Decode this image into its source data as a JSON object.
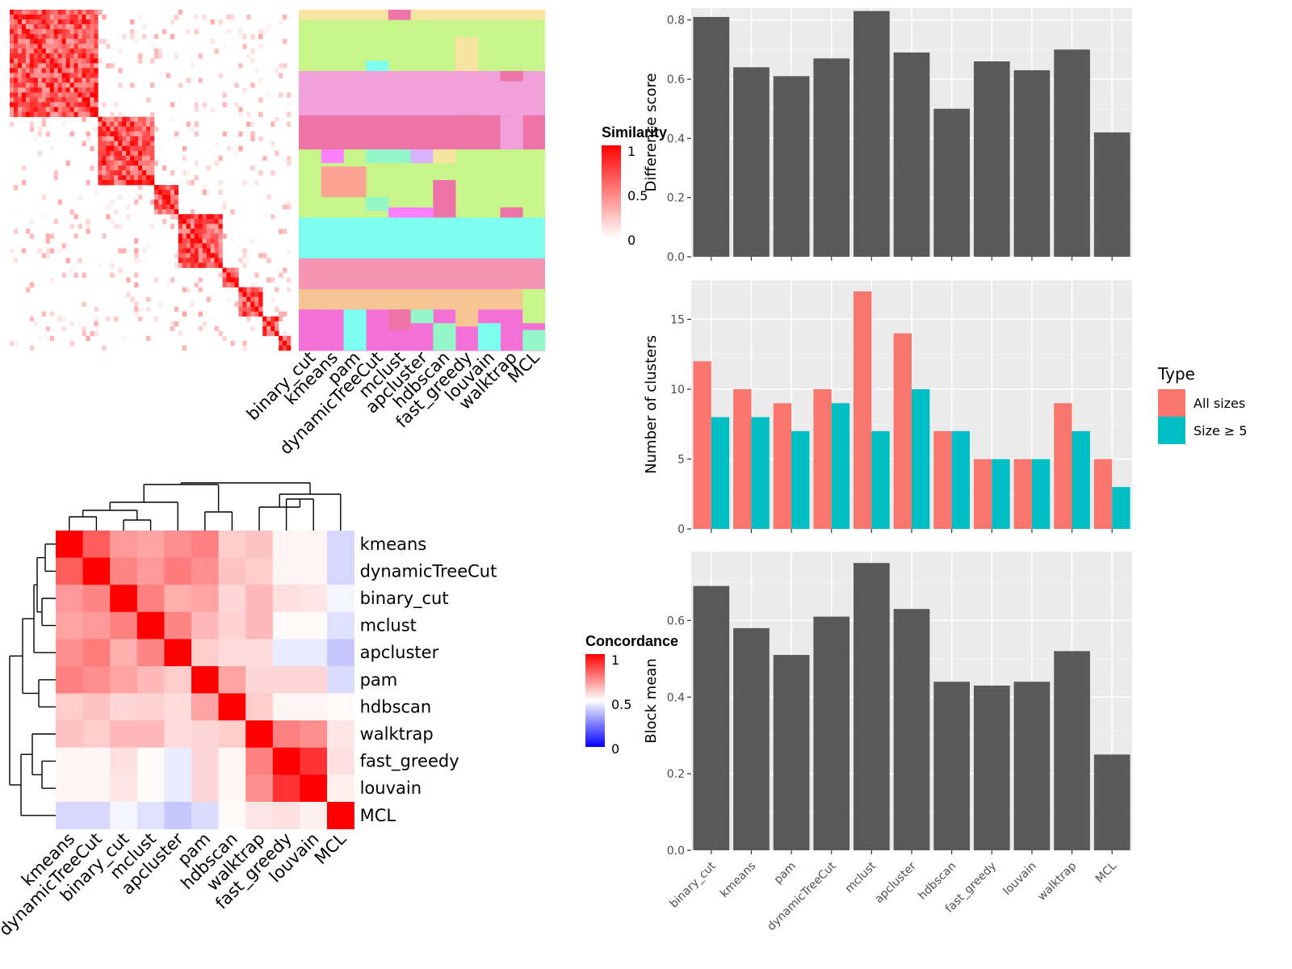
{
  "similarity_legend": {
    "title": "Similarity",
    "ticks": [
      "1",
      "0.5",
      "0"
    ]
  },
  "concordance_legend": {
    "title": "Concordance",
    "ticks": [
      "1",
      "0.5",
      "0"
    ]
  },
  "chart_data": [
    {
      "type": "heatmap",
      "name": "similarity_and_partitions",
      "method_labels": [
        "binary_cut",
        "kmeans",
        "pam",
        "dynamicTreeCut",
        "mclust",
        "apcluster",
        "hdbscan",
        "fast_greedy",
        "louvain",
        "walktrap",
        "MCL"
      ],
      "colorscale": {
        "low": "#FFFFFF",
        "high": "#FF0000",
        "range": [
          0,
          1
        ]
      }
    },
    {
      "type": "heatmap",
      "name": "concordance",
      "rows": [
        "kmeans",
        "dynamicTreeCut",
        "binary_cut",
        "mclust",
        "apcluster",
        "pam",
        "hdbscan",
        "walktrap",
        "fast_greedy",
        "louvain",
        "MCL"
      ],
      "cols": [
        "kmeans",
        "dynamicTreeCut",
        "binary_cut",
        "mclust",
        "apcluster",
        "pam",
        "hdbscan",
        "walktrap",
        "fast_greedy",
        "louvain",
        "MCL"
      ],
      "colorscale": {
        "low": "#0000FF",
        "mid": "#FFFFFF",
        "high": "#FF0000",
        "range": [
          0,
          1
        ]
      },
      "values": [
        [
          1.0,
          0.82,
          0.7,
          0.68,
          0.72,
          0.75,
          0.6,
          0.62,
          0.52,
          0.52,
          0.42
        ],
        [
          0.82,
          1.0,
          0.74,
          0.7,
          0.76,
          0.72,
          0.62,
          0.6,
          0.52,
          0.52,
          0.42
        ],
        [
          0.7,
          0.74,
          1.0,
          0.75,
          0.66,
          0.68,
          0.58,
          0.64,
          0.56,
          0.55,
          0.48
        ],
        [
          0.68,
          0.7,
          0.75,
          1.0,
          0.74,
          0.64,
          0.59,
          0.64,
          0.51,
          0.51,
          0.44
        ],
        [
          0.72,
          0.76,
          0.66,
          0.74,
          1.0,
          0.6,
          0.57,
          0.57,
          0.46,
          0.46,
          0.39
        ],
        [
          0.75,
          0.72,
          0.68,
          0.64,
          0.6,
          1.0,
          0.68,
          0.58,
          0.58,
          0.58,
          0.43
        ],
        [
          0.6,
          0.62,
          0.58,
          0.59,
          0.57,
          0.68,
          1.0,
          0.6,
          0.52,
          0.52,
          0.51
        ],
        [
          0.62,
          0.6,
          0.64,
          0.64,
          0.57,
          0.58,
          0.6,
          1.0,
          0.75,
          0.72,
          0.55
        ],
        [
          0.52,
          0.52,
          0.56,
          0.51,
          0.46,
          0.58,
          0.52,
          0.75,
          1.0,
          0.9,
          0.56
        ],
        [
          0.52,
          0.52,
          0.55,
          0.51,
          0.46,
          0.58,
          0.52,
          0.72,
          0.9,
          1.0,
          0.53
        ],
        [
          0.42,
          0.42,
          0.48,
          0.44,
          0.39,
          0.43,
          0.51,
          0.55,
          0.56,
          0.53,
          1.0
        ]
      ]
    },
    {
      "type": "bar",
      "categories": [
        "binary_cut",
        "kmeans",
        "pam",
        "dynamicTreeCut",
        "mclust",
        "apcluster",
        "hdbscan",
        "fast_greedy",
        "louvain",
        "walktrap",
        "MCL"
      ],
      "values": [
        0.81,
        0.64,
        0.61,
        0.67,
        0.83,
        0.69,
        0.5,
        0.66,
        0.63,
        0.7,
        0.42
      ],
      "ylabel": "Difference score",
      "ylim": [
        0,
        0.84
      ],
      "yticks": [
        0.0,
        0.2,
        0.4,
        0.6,
        0.8
      ],
      "grid": true,
      "color": "#595959"
    },
    {
      "type": "bar",
      "categories": [
        "binary_cut",
        "kmeans",
        "pam",
        "dynamicTreeCut",
        "mclust",
        "apcluster",
        "hdbscan",
        "fast_greedy",
        "louvain",
        "walktrap",
        "MCL"
      ],
      "series": [
        {
          "name": "All sizes",
          "values": [
            12,
            10,
            9,
            10,
            17,
            14,
            7,
            5,
            5,
            9,
            5
          ],
          "color": "#F8766D"
        },
        {
          "name": "Size ≥ 5",
          "values": [
            8,
            8,
            7,
            9,
            7,
            10,
            7,
            5,
            5,
            7,
            3
          ],
          "color": "#00BFC4"
        }
      ],
      "ylabel": "Number of clusters",
      "ylim": [
        0,
        17.8
      ],
      "yticks": [
        0,
        5,
        10,
        15
      ],
      "legend": {
        "title": "Type",
        "position": "right"
      },
      "grid": true
    },
    {
      "type": "bar",
      "categories": [
        "binary_cut",
        "kmeans",
        "pam",
        "dynamicTreeCut",
        "mclust",
        "apcluster",
        "hdbscan",
        "fast_greedy",
        "louvain",
        "walktrap",
        "MCL"
      ],
      "values": [
        0.69,
        0.58,
        0.51,
        0.61,
        0.75,
        0.63,
        0.44,
        0.43,
        0.44,
        0.52,
        0.25
      ],
      "ylabel": "Block mean",
      "ylim": [
        0,
        0.78
      ],
      "yticks": [
        0.0,
        0.2,
        0.4,
        0.6
      ],
      "grid": true,
      "color": "#595959"
    }
  ]
}
